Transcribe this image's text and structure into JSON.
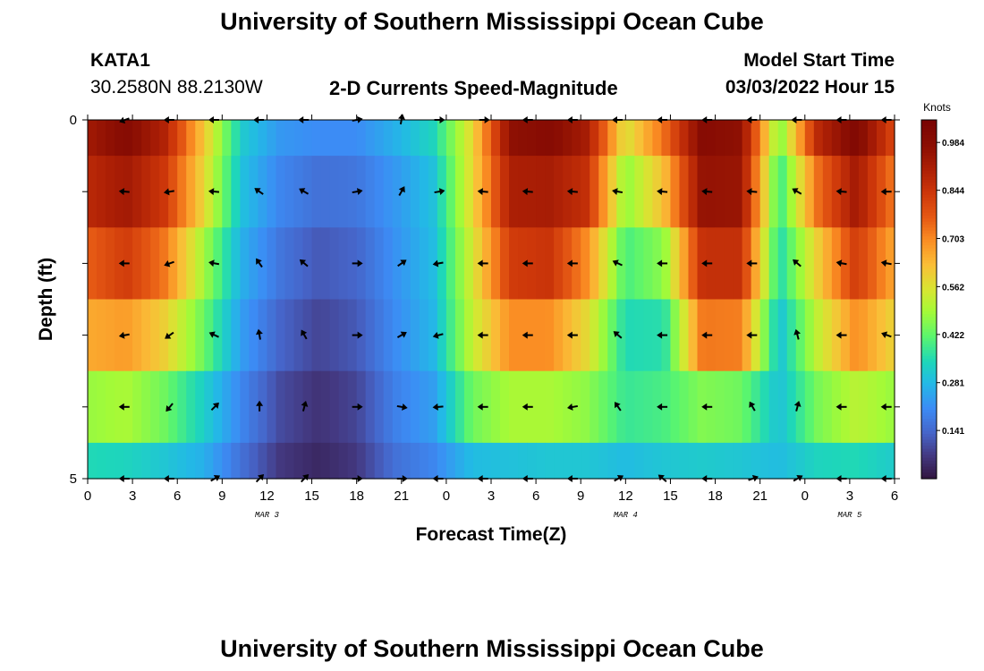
{
  "header": {
    "title": "University of Southern Mississippi Ocean Cube",
    "station": "KATA1",
    "coords": "30.2580N  88.2130W",
    "subtitle": "2-D Currents Speed-Magnitude",
    "model_label": "Model Start Time",
    "model_time": "03/03/2022 Hour 15",
    "footer_title": "University of Southern Mississippi Ocean Cube"
  },
  "chart_data": {
    "type": "heatmap",
    "title": "2-D Currents Speed-Magnitude",
    "xlabel": "Forecast Time(Z)",
    "ylabel": "Depth (ft)",
    "x_tick_labels": [
      "0",
      "3",
      "6",
      "9",
      "12",
      "15",
      "18",
      "21",
      "0",
      "3",
      "6",
      "9",
      "12",
      "15",
      "18",
      "21",
      "0",
      "3",
      "6"
    ],
    "x_range_hours": [
      0,
      54
    ],
    "y_tick_labels": [
      "0",
      "5"
    ],
    "y_range": [
      0,
      5
    ],
    "date_labels": [
      {
        "label": "MAR 3",
        "hour": 12
      },
      {
        "label": "MAR 4",
        "hour": 36
      },
      {
        "label": "MAR 5",
        "hour": 51
      }
    ],
    "colorbar": {
      "title": "Knots",
      "ticks": [
        "0.984",
        "0.844",
        "0.703",
        "0.562",
        "0.422",
        "0.281",
        "0.141"
      ],
      "tick_values": [
        0.984,
        0.844,
        0.703,
        0.562,
        0.422,
        0.281,
        0.141
      ],
      "range": [
        0,
        1.05
      ]
    },
    "rows": [
      {
        "depth": "0.5",
        "values": [
          0.93,
          1.0,
          0.9,
          0.62,
          0.32,
          0.23,
          0.21,
          0.21,
          0.27,
          0.34,
          0.58,
          0.97,
          1.0,
          0.92,
          0.56,
          0.74,
          1.0,
          0.97,
          0.45,
          0.88,
          1.02,
          0.8
        ]
      },
      {
        "depth": "1.5",
        "values": [
          0.88,
          0.93,
          0.84,
          0.59,
          0.3,
          0.2,
          0.16,
          0.17,
          0.23,
          0.3,
          0.58,
          0.91,
          0.92,
          0.86,
          0.47,
          0.63,
          0.96,
          0.95,
          0.38,
          0.74,
          0.93,
          0.72
        ]
      },
      {
        "depth": "2.5",
        "values": [
          0.76,
          0.83,
          0.73,
          0.5,
          0.27,
          0.17,
          0.12,
          0.14,
          0.22,
          0.29,
          0.55,
          0.83,
          0.85,
          0.7,
          0.4,
          0.47,
          0.86,
          0.86,
          0.35,
          0.6,
          0.83,
          0.66
        ]
      },
      {
        "depth": "3.5",
        "values": [
          0.66,
          0.68,
          0.6,
          0.44,
          0.24,
          0.14,
          0.09,
          0.12,
          0.21,
          0.28,
          0.53,
          0.7,
          0.7,
          0.58,
          0.35,
          0.36,
          0.73,
          0.72,
          0.3,
          0.53,
          0.7,
          0.59
        ]
      },
      {
        "depth": "4.5",
        "values": [
          0.48,
          0.5,
          0.44,
          0.33,
          0.2,
          0.1,
          0.06,
          0.09,
          0.19,
          0.24,
          0.44,
          0.5,
          0.5,
          0.47,
          0.38,
          0.4,
          0.46,
          0.44,
          0.3,
          0.45,
          0.52,
          0.48
        ]
      },
      {
        "depth": "5.0",
        "values": [
          0.35,
          0.34,
          0.31,
          0.27,
          0.16,
          0.07,
          0.04,
          0.07,
          0.16,
          0.2,
          0.29,
          0.3,
          0.31,
          0.31,
          0.29,
          0.31,
          0.32,
          0.31,
          0.29,
          0.34,
          0.35,
          0.32
        ]
      }
    ],
    "arrows": {
      "hours": [
        2.5,
        5.5,
        8.5,
        11.5,
        14.5,
        18,
        21,
        23.5,
        26.5,
        29.5,
        32.5,
        35.5,
        38.5,
        41.5,
        44.5,
        47.5,
        50.5,
        53.5
      ],
      "rows": [
        {
          "depth": "0",
          "angles": [
            200,
            180,
            180,
            180,
            180,
            10,
            80,
            0,
            0,
            180,
            180,
            180,
            180,
            180,
            180,
            180,
            180,
            180
          ]
        },
        {
          "depth": "1",
          "angles": [
            175,
            190,
            175,
            145,
            150,
            10,
            60,
            10,
            175,
            175,
            175,
            170,
            175,
            175,
            175,
            150,
            175,
            180
          ]
        },
        {
          "depth": "2",
          "angles": [
            180,
            200,
            170,
            125,
            140,
            0,
            35,
            190,
            180,
            180,
            180,
            155,
            180,
            180,
            180,
            140,
            170,
            170
          ]
        },
        {
          "depth": "3",
          "angles": [
            190,
            215,
            155,
            100,
            120,
            0,
            30,
            195,
            180,
            180,
            180,
            140,
            180,
            180,
            180,
            105,
            180,
            160
          ]
        },
        {
          "depth": "4",
          "angles": [
            180,
            230,
            45,
            90,
            75,
            0,
            350,
            185,
            180,
            180,
            190,
            125,
            180,
            180,
            120,
            75,
            180,
            180
          ]
        },
        {
          "depth": "5",
          "angles": [
            180,
            180,
            30,
            45,
            45,
            0,
            0,
            180,
            180,
            180,
            180,
            30,
            140,
            180,
            20,
            30,
            180,
            180
          ]
        }
      ]
    }
  }
}
